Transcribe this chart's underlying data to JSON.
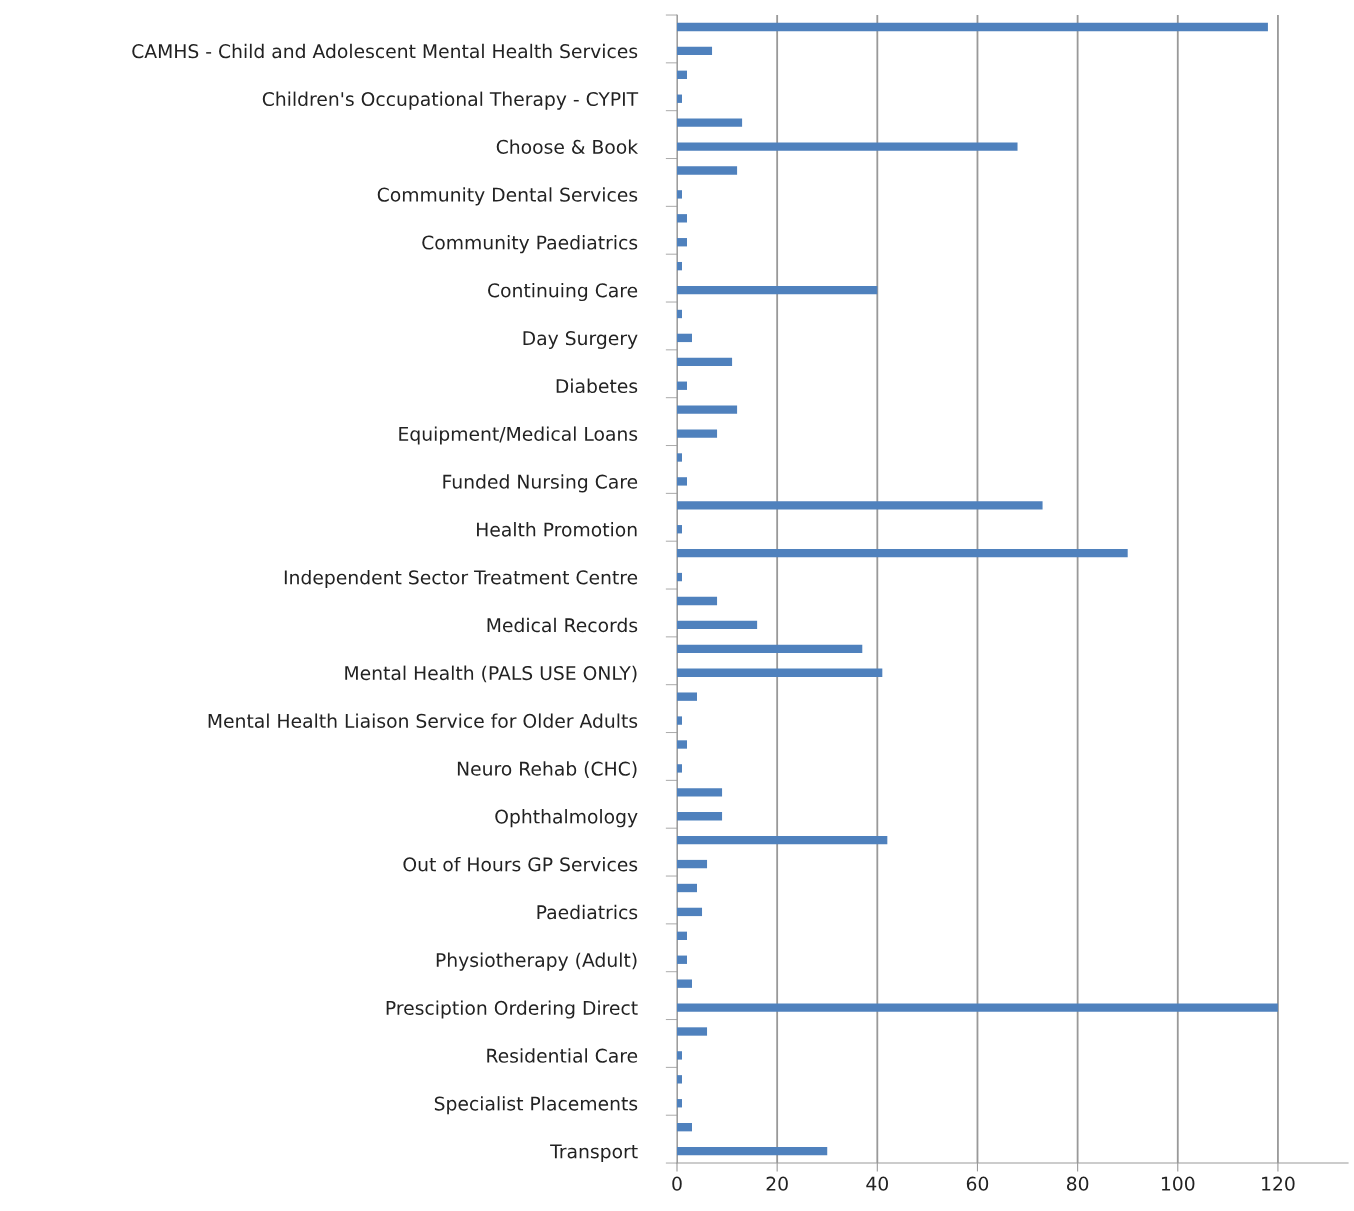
{
  "chart_data": {
    "type": "bar",
    "orientation": "horizontal",
    "categories": [
      null,
      "CAMHS - Child and Adolescent Mental Health Services",
      null,
      "Children's Occupational Therapy - CYPIT",
      null,
      "Choose & Book",
      null,
      "Community Dental Services",
      null,
      "Community Paediatrics",
      null,
      "Continuing Care",
      null,
      "Day Surgery",
      null,
      "Diabetes",
      null,
      "Equipment/Medical Loans",
      null,
      "Funded Nursing Care",
      null,
      "Health Promotion",
      null,
      "Independent Sector Treatment Centre",
      null,
      "Medical Records",
      null,
      "Mental Health (PALS USE ONLY)",
      null,
      "Mental Health Liaison Service for Older Adults",
      null,
      "Neuro Rehab (CHC)",
      null,
      "Ophthalmology",
      null,
      "Out of Hours GP Services",
      null,
      "Paediatrics",
      null,
      "Physiotherapy (Adult)",
      null,
      "Presciption Ordering Direct",
      null,
      "Residential Care",
      null,
      "Specialist Placements",
      null,
      "Transport"
    ],
    "values": [
      118,
      7,
      2,
      1,
      13,
      68,
      12,
      1,
      2,
      2,
      1,
      40,
      1,
      3,
      11,
      2,
      12,
      8,
      1,
      2,
      73,
      1,
      90,
      1,
      8,
      16,
      37,
      41,
      4,
      1,
      2,
      1,
      9,
      9,
      42,
      6,
      4,
      5,
      2,
      2,
      3,
      120,
      6,
      1,
      1,
      1,
      3,
      30
    ],
    "color": "#4f81bd",
    "xlim": [
      0,
      134
    ],
    "xticks": [
      0,
      20,
      40,
      60,
      80,
      100,
      120
    ],
    "grid": "x"
  }
}
